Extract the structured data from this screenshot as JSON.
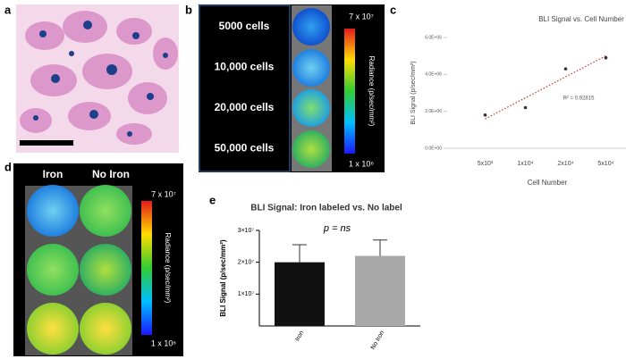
{
  "panel_labels": [
    "a",
    "b",
    "c",
    "d",
    "e"
  ],
  "panel_b": {
    "rows": [
      "5000 cells",
      "10,000 cells",
      "20,000 cells",
      "50,000 cells"
    ],
    "scale_max": "7 x 10⁷",
    "scale_min": "1 x 10⁶",
    "scale_label": "Radiance (p/sec/mm²)"
  },
  "panel_d": {
    "columns": [
      "Iron",
      "No Iron"
    ],
    "scale_max": "7 x 10⁷",
    "scale_min": "1 x 10⁶",
    "scale_label": "Radiance (p/sec/mm²)"
  },
  "chart_data": [
    {
      "type": "scatter",
      "title": "BLI Signal vs. Cell Number",
      "x_label": "Cell Number",
      "y_label": "BLI Signal (p/sec/mm²)",
      "annotation": "R² = 0.92815",
      "categories": [
        "5x10³",
        "1x10⁴",
        "2x10⁴",
        "5x10⁴"
      ],
      "values": [
        1800000,
        2200000,
        4300000,
        4900000
      ],
      "color": "#333333",
      "trendline_color": "#c0392b",
      "ylim": [
        0,
        6000000
      ],
      "yticks": [
        {
          "value": 0,
          "label": "0.0E+00"
        },
        {
          "value": 2000000,
          "label": "2.0E+06"
        },
        {
          "value": 4000000,
          "label": "4.0E+06"
        },
        {
          "value": 6000000,
          "label": "6.0E+06"
        }
      ]
    },
    {
      "type": "bar",
      "title": "BLI Signal: Iron labeled vs. No label",
      "annotation": "p = ns",
      "y_label": "BLI Signal (p/sec/mm²)",
      "categories": [
        "Iron",
        "No Iron"
      ],
      "values": [
        20000000,
        22000000
      ],
      "errors": [
        5500000,
        5000000
      ],
      "colors": [
        "#111111",
        "#a9a9a9"
      ],
      "ylim": [
        0,
        30000000
      ],
      "yticks": [
        {
          "value": 10000000,
          "label": "1×10⁷"
        },
        {
          "value": 20000000,
          "label": "2×10⁷"
        },
        {
          "value": 30000000,
          "label": "3×10⁷"
        }
      ]
    }
  ]
}
